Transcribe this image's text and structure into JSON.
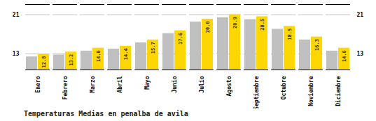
{
  "chart_data": {
    "type": "bar",
    "title": "Temperaturas Medias en penalba de avila",
    "categories": [
      "Enero",
      "Febrero",
      "Marzo",
      "Abril",
      "Mayo",
      "Junio",
      "Julio",
      "Agosto",
      "Septiembre",
      "Octubre",
      "Noviembre",
      "Diciembre"
    ],
    "series": [
      {
        "color": "#C0C0C0",
        "values": [
          12.2,
          12.6,
          13.4,
          13.8,
          15.1,
          17.0,
          19.4,
          20.3,
          19.9,
          17.9,
          15.7,
          13.4
        ]
      },
      {
        "color": "#FFD700",
        "values": [
          12.8,
          13.2,
          14.0,
          14.4,
          15.7,
          17.6,
          20.0,
          20.9,
          20.5,
          18.5,
          16.3,
          14.0
        ],
        "data_labels": true,
        "value_labels": [
          "12.8",
          "13.2",
          "14.0",
          "14.4",
          "15.7",
          "17.6",
          "20.0",
          "20.9",
          "20.5",
          "18.5",
          "16.3",
          "14.0"
        ]
      }
    ],
    "ylim": [
      9.5,
      23.0
    ],
    "yticks": [
      12.8,
      20.9
    ],
    "grid": true
  }
}
